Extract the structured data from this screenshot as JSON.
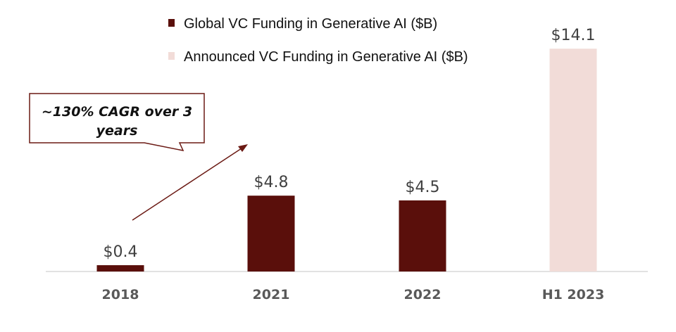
{
  "chart_data": {
    "type": "bar",
    "categories": [
      "2018",
      "2021",
      "2022",
      "H1 2023"
    ],
    "series": [
      {
        "name": "Global VC Funding in Generative AI ($B)",
        "values": [
          0.4,
          4.8,
          4.5,
          null
        ],
        "color": "#5a0f0b"
      },
      {
        "name": "Announced VC Funding in Generative AI ($B)",
        "values": [
          null,
          null,
          null,
          14.1
        ],
        "color": "#f2dcd8"
      }
    ],
    "data_labels": [
      "$0.4",
      "$4.8",
      "$4.5",
      "$14.1"
    ],
    "title": "",
    "xlabel": "",
    "ylabel": "",
    "ylim": [
      0,
      15
    ],
    "grid": false,
    "legend_position": "top",
    "annotation": {
      "text_line1": "~130% CAGR over 3",
      "text_line2": "years",
      "color": "#6b1a14"
    }
  }
}
